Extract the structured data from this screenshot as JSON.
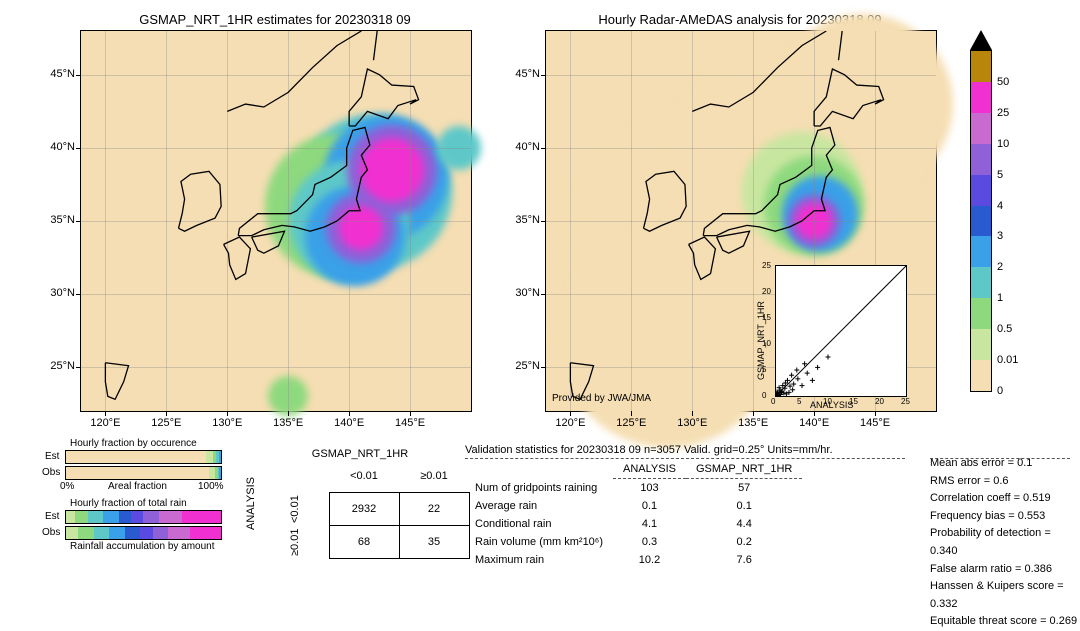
{
  "left_map": {
    "title": "GSMAP_NRT_1HR estimates for 20230318 09",
    "x_ticks": [
      "120°E",
      "125°E",
      "130°E",
      "135°E",
      "140°E",
      "145°E"
    ],
    "y_ticks": [
      "25°N",
      "30°N",
      "35°N",
      "40°N",
      "45°N"
    ],
    "xlim": [
      118,
      150
    ],
    "ylim": [
      22,
      48
    ],
    "bg_color": "#f5deb3"
  },
  "right_map": {
    "title": "Hourly Radar-AMeDAS analysis for 20230318 09",
    "x_ticks": [
      "120°E",
      "125°E",
      "130°E",
      "135°E",
      "140°E",
      "145°E"
    ],
    "y_ticks": [
      "25°N",
      "30°N",
      "35°N",
      "40°N",
      "45°N"
    ],
    "xlim": [
      118,
      150
    ],
    "ylim": [
      22,
      48
    ],
    "bg_color": "#f5deb3",
    "attribution": "Provided by JWA/JMA"
  },
  "colorbar": {
    "ticks": [
      "0",
      "0.01",
      "0.5",
      "1",
      "2",
      "3",
      "4",
      "5",
      "10",
      "25",
      "50"
    ],
    "colors": [
      "#f5deb3",
      "#c8e6a0",
      "#8ed97e",
      "#5ec8c8",
      "#3aa0e8",
      "#2a5ad0",
      "#5a4ae0",
      "#9060d8",
      "#c86ad0",
      "#f030d0",
      "#b8860b"
    ],
    "top_triangle": "#000000"
  },
  "occurrence_bars": {
    "title": "Hourly fraction by occurence",
    "axis_label": "Areal fraction",
    "axis_0": "0%",
    "axis_100": "100%",
    "est_label": "Est",
    "obs_label": "Obs",
    "est_segments": [
      {
        "color": "#f5deb3",
        "width": 90
      },
      {
        "color": "#c8e6a0",
        "width": 5
      },
      {
        "color": "#8ed97e",
        "width": 2
      },
      {
        "color": "#5ec8c8",
        "width": 2
      },
      {
        "color": "#3aa0e8",
        "width": 1
      }
    ],
    "obs_segments": [
      {
        "color": "#f5deb3",
        "width": 92
      },
      {
        "color": "#c8e6a0",
        "width": 4
      },
      {
        "color": "#8ed97e",
        "width": 2
      },
      {
        "color": "#5ec8c8",
        "width": 1
      },
      {
        "color": "#3aa0e8",
        "width": 1
      }
    ]
  },
  "rain_bars": {
    "title": "Hourly fraction of total rain",
    "footer": "Rainfall accumulation by amount",
    "est_label": "Est",
    "obs_label": "Obs",
    "est_segments": [
      {
        "color": "#c8e6a0",
        "width": 6
      },
      {
        "color": "#8ed97e",
        "width": 8
      },
      {
        "color": "#5ec8c8",
        "width": 10
      },
      {
        "color": "#3aa0e8",
        "width": 10
      },
      {
        "color": "#2a5ad0",
        "width": 8
      },
      {
        "color": "#5a4ae0",
        "width": 8
      },
      {
        "color": "#9060d8",
        "width": 10
      },
      {
        "color": "#c86ad0",
        "width": 15
      },
      {
        "color": "#f030d0",
        "width": 25
      }
    ],
    "obs_segments": [
      {
        "color": "#c8e6a0",
        "width": 8
      },
      {
        "color": "#8ed97e",
        "width": 10
      },
      {
        "color": "#5ec8c8",
        "width": 10
      },
      {
        "color": "#3aa0e8",
        "width": 10
      },
      {
        "color": "#2a5ad0",
        "width": 10
      },
      {
        "color": "#5a4ae0",
        "width": 8
      },
      {
        "color": "#9060d8",
        "width": 10
      },
      {
        "color": "#c86ad0",
        "width": 14
      },
      {
        "color": "#f030d0",
        "width": 20
      }
    ]
  },
  "contingency": {
    "col_title": "GSMAP_NRT_1HR",
    "row_title": "ANALYSIS",
    "col_labels": [
      "<0.01",
      "≥0.01"
    ],
    "row_labels": [
      "<0.01",
      "≥0.01"
    ],
    "cells": [
      [
        "2932",
        "22"
      ],
      [
        "68",
        "35"
      ]
    ]
  },
  "validation": {
    "title": "Validation statistics for 20230318 09  n=3057 Valid. grid=0.25° Units=mm/hr.",
    "col_headers": [
      "ANALYSIS",
      "GSMAP_NRT_1HR"
    ],
    "rows": [
      {
        "label": "Num of gridpoints raining",
        "a": "103",
        "g": "57"
      },
      {
        "label": "Average rain",
        "a": "0.1",
        "g": "0.1"
      },
      {
        "label": "Conditional rain",
        "a": "4.1",
        "g": "4.4"
      },
      {
        "label": "Rain volume (mm km²10⁶)",
        "a": "0.3",
        "g": "0.2"
      },
      {
        "label": "Maximum rain",
        "a": "10.2",
        "g": "7.6"
      }
    ]
  },
  "metrics": {
    "items": [
      "Mean abs error =    0.1",
      "RMS error =    0.6",
      "Correlation coeff =  0.519",
      "Frequency bias =  0.553",
      "Probability of detection =  0.340",
      "False alarm ratio =  0.386",
      "Hanssen & Kuipers score =  0.332",
      "Equitable threat score =  0.269"
    ]
  },
  "scatter": {
    "xlabel": "ANALYSIS",
    "ylabel": "GSMAP_NRT_1HR",
    "xlim": [
      0,
      25
    ],
    "ylim": [
      0,
      25
    ],
    "ticks": [
      "0",
      "5",
      "10",
      "15",
      "20",
      "25"
    ],
    "points": [
      {
        "x": 0.1,
        "y": 0.2
      },
      {
        "x": 0.3,
        "y": 0.5
      },
      {
        "x": 0.5,
        "y": 0.3
      },
      {
        "x": 0.8,
        "y": 1.1
      },
      {
        "x": 1.0,
        "y": 0.7
      },
      {
        "x": 1.3,
        "y": 2.0
      },
      {
        "x": 1.7,
        "y": 1.5
      },
      {
        "x": 2.0,
        "y": 0.4
      },
      {
        "x": 2.2,
        "y": 3.0
      },
      {
        "x": 2.7,
        "y": 1.9
      },
      {
        "x": 3.0,
        "y": 4.0
      },
      {
        "x": 3.4,
        "y": 2.3
      },
      {
        "x": 4.0,
        "y": 5.0
      },
      {
        "x": 4.2,
        "y": 3.3
      },
      {
        "x": 5.0,
        "y": 2.0
      },
      {
        "x": 5.5,
        "y": 6.2
      },
      {
        "x": 6.0,
        "y": 4.4
      },
      {
        "x": 7.0,
        "y": 3.0
      },
      {
        "x": 8.0,
        "y": 5.5
      },
      {
        "x": 10.0,
        "y": 7.5
      },
      {
        "x": 0.2,
        "y": 0.8
      },
      {
        "x": 0.4,
        "y": 0.1
      },
      {
        "x": 0.6,
        "y": 1.6
      },
      {
        "x": 0.9,
        "y": 0.3
      },
      {
        "x": 1.1,
        "y": 0.9
      },
      {
        "x": 1.5,
        "y": 0.6
      },
      {
        "x": 1.8,
        "y": 2.5
      },
      {
        "x": 2.5,
        "y": 0.7
      },
      {
        "x": 3.2,
        "y": 1.2
      },
      {
        "x": 0.05,
        "y": 0.05
      },
      {
        "x": 0.15,
        "y": 0.4
      },
      {
        "x": 0.35,
        "y": 0.15
      }
    ]
  },
  "precip_left": [
    {
      "lon": 143.5,
      "lat": 38.5,
      "r": 32,
      "color": "#f030d0"
    },
    {
      "lon": 143.5,
      "lat": 38.5,
      "r": 45,
      "color": "#9060d8"
    },
    {
      "lon": 143,
      "lat": 38,
      "r": 62,
      "color": "#3aa0e8"
    },
    {
      "lon": 142,
      "lat": 37,
      "r": 78,
      "color": "#5ec8c8"
    },
    {
      "lon": 141,
      "lat": 34.5,
      "r": 22,
      "color": "#f030d0"
    },
    {
      "lon": 141,
      "lat": 34.5,
      "r": 35,
      "color": "#9060d8"
    },
    {
      "lon": 140.5,
      "lat": 34,
      "r": 50,
      "color": "#3aa0e8"
    },
    {
      "lon": 140,
      "lat": 35,
      "r": 60,
      "color": "#5ec8c8"
    },
    {
      "lon": 139,
      "lat": 36,
      "r": 72,
      "color": "#8ed97e"
    },
    {
      "lon": 149,
      "lat": 40,
      "r": 22,
      "color": "#5ec8c8"
    },
    {
      "lon": 135,
      "lat": 23,
      "r": 20,
      "color": "#8ed97e"
    }
  ],
  "precip_right": [
    {
      "lon": 140,
      "lat": 35,
      "r": 18,
      "color": "#f030d0"
    },
    {
      "lon": 140,
      "lat": 35,
      "r": 26,
      "color": "#9060d8"
    },
    {
      "lon": 140.5,
      "lat": 35.5,
      "r": 38,
      "color": "#3aa0e8"
    },
    {
      "lon": 140,
      "lat": 36,
      "r": 50,
      "color": "#8ed97e"
    },
    {
      "lon": 139,
      "lat": 37,
      "r": 60,
      "color": "#c8e6a0"
    },
    {
      "lon": 132,
      "lat": 33,
      "r": 150,
      "color": "#f5deb3"
    },
    {
      "lon": 138,
      "lat": 38,
      "r": 130,
      "color": "#f5deb3"
    },
    {
      "lon": 128,
      "lat": 27,
      "r": 110,
      "color": "#f5deb3"
    },
    {
      "lon": 144,
      "lat": 43,
      "r": 90,
      "color": "#f5deb3"
    }
  ]
}
